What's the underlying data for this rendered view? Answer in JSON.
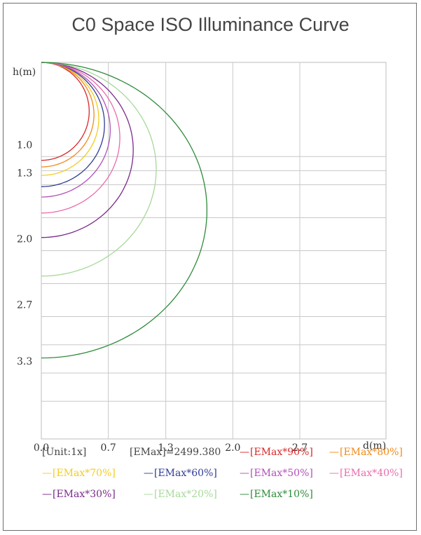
{
  "chart_data": {
    "type": "line",
    "title": "C0 Space ISO Illuminance Curve",
    "xlabel": "d(m)",
    "ylabel": "h(m)",
    "x_ticks": [
      "0.0",
      "0.7",
      "1.3",
      "2.0",
      "2.7"
    ],
    "y_ticks": [
      "1.0",
      "1.3",
      "2.0",
      "2.7",
      "3.3"
    ],
    "xlim": [
      0,
      3.6
    ],
    "ylim": [
      0,
      4.0
    ],
    "grid": true,
    "unit_label": "[Unit:1x]",
    "emax_label": "[EMax]=2499.380",
    "legend_placement": "bottom",
    "series": [
      {
        "name": "[EMax*90%]",
        "color": "#d62828",
        "depth": 1.04,
        "max_width": 0.5
      },
      {
        "name": "[EMax*80%]",
        "color": "#f08a1c",
        "depth": 1.11,
        "max_width": 0.55
      },
      {
        "name": "[EMax*70%]",
        "color": "#f2cd1f",
        "depth": 1.2,
        "max_width": 0.6
      },
      {
        "name": "[EMax*60%]",
        "color": "#2f3c96",
        "depth": 1.32,
        "max_width": 0.66
      },
      {
        "name": "[EMax*50%]",
        "color": "#b04fb8",
        "depth": 1.43,
        "max_width": 0.72
      },
      {
        "name": "[EMax*40%]",
        "color": "#e96cab",
        "depth": 1.6,
        "max_width": 0.82
      },
      {
        "name": "[EMax*30%]",
        "color": "#7a2a8a",
        "depth": 1.86,
        "max_width": 0.96
      },
      {
        "name": "[EMax*20%]",
        "color": "#a8d89a",
        "depth": 2.27,
        "max_width": 1.2
      },
      {
        "name": "[EMax*10%]",
        "color": "#2e8b3a",
        "depth": 3.14,
        "max_width": 1.73
      }
    ]
  }
}
